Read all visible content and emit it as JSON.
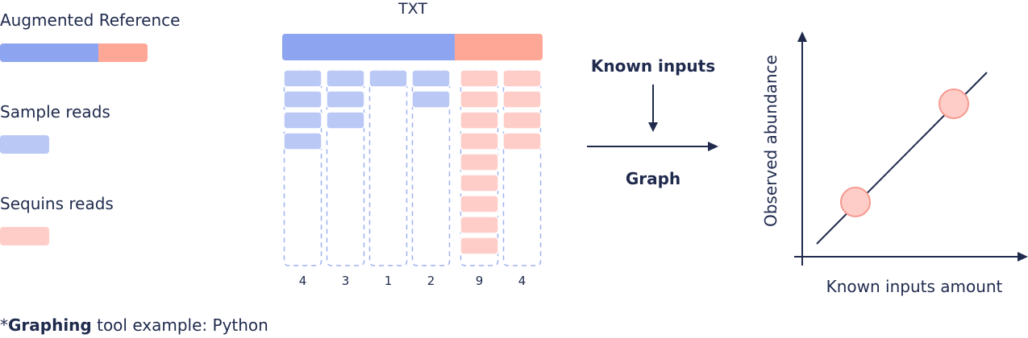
{
  "legend": {
    "reference_label": "Augmented Reference",
    "sample_label": "Sample reads",
    "sequins_label": "Sequins reads"
  },
  "txt": {
    "title": "TXT",
    "columns": [
      {
        "count": "4",
        "type": "sample"
      },
      {
        "count": "3",
        "type": "sample"
      },
      {
        "count": "1",
        "type": "sample"
      },
      {
        "count": "2",
        "type": "sample"
      },
      {
        "count": "9",
        "type": "sequins"
      },
      {
        "count": "4",
        "type": "sequins"
      }
    ]
  },
  "flow": {
    "inputs_label": "Known inputs",
    "output_label": "Graph"
  },
  "graph": {
    "ylabel": "Observed abundance",
    "xlabel": "Known inputs amount"
  },
  "footnote": {
    "prefix": "*",
    "bold": "Graphing",
    "rest": " tool example: Python"
  },
  "colors": {
    "blue": "#8da5f0",
    "blue_light": "#bac8f5",
    "pink": "#ffa797",
    "pink_light": "#ffcdc8",
    "navy": "#1f2a4d",
    "dash": "#9db2f2"
  }
}
